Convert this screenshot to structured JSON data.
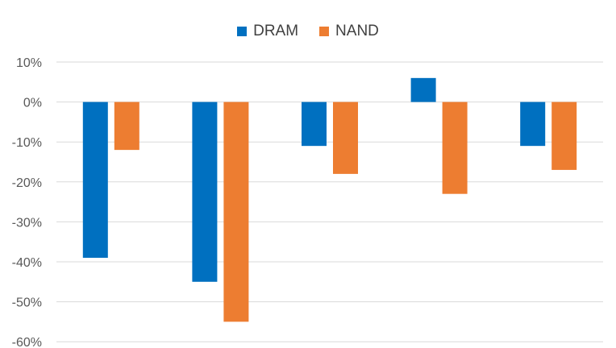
{
  "chart_data": {
    "type": "bar",
    "title": "",
    "xlabel": "",
    "ylabel": "",
    "categories": [
      "",
      "",
      "",
      "",
      ""
    ],
    "series": [
      {
        "name": "DRAM",
        "color": "#0070c0",
        "values": [
          -39,
          -45,
          -11,
          6,
          -11
        ]
      },
      {
        "name": "NAND",
        "color": "#ed7d31",
        "values": [
          -12,
          -55,
          -18,
          -23,
          -17
        ]
      }
    ],
    "ylim": [
      -60,
      10
    ],
    "yticks": [
      10,
      0,
      -10,
      -20,
      -30,
      -40,
      -50,
      -60
    ],
    "ytick_labels": [
      "10%",
      "0%",
      "-10%",
      "-20%",
      "-30%",
      "-40%",
      "-50%",
      "-60%"
    ],
    "grid": true,
    "legend": "top-center"
  }
}
